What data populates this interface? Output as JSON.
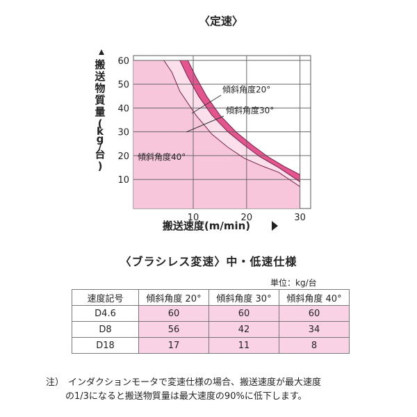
{
  "chart_data": {
    "type": "line",
    "title": "〈定速〉",
    "xlabel": "搬送速度(m/min)",
    "ylabel": "搬送物質量(kg/台)",
    "xlim": [
      0,
      30
    ],
    "ylim": [
      0,
      60
    ],
    "grid": true,
    "x_ticks": [
      10,
      20,
      30
    ],
    "y_ticks": [
      10,
      20,
      30,
      40,
      50,
      60
    ],
    "series": [
      {
        "name": "傾斜角度20°",
        "points": [
          [
            9.0,
            60
          ],
          [
            10.5,
            53
          ],
          [
            12.5,
            45
          ],
          [
            15.0,
            37
          ],
          [
            18.0,
            30
          ],
          [
            21.0,
            24.5
          ],
          [
            24.0,
            19.5
          ],
          [
            27.0,
            15.5
          ],
          [
            30.0,
            12.0
          ]
        ]
      },
      {
        "name": "傾斜角度30°",
        "points": [
          [
            7.5,
            60
          ],
          [
            9.0,
            53
          ],
          [
            11.0,
            45
          ],
          [
            13.5,
            37
          ],
          [
            16.5,
            30
          ],
          [
            19.5,
            24.5
          ],
          [
            22.5,
            19.5
          ],
          [
            26.0,
            15.0
          ],
          [
            30.0,
            9.0
          ]
        ]
      },
      {
        "name": "傾斜角度40°",
        "points": [
          [
            4.5,
            60
          ],
          [
            6.0,
            55
          ],
          [
            7.5,
            47
          ],
          [
            10.5,
            37
          ],
          [
            13.5,
            29
          ],
          [
            16.5,
            23.5
          ],
          [
            19.5,
            19
          ],
          [
            22.5,
            16
          ],
          [
            26.0,
            13.0
          ],
          [
            30.0,
            7.0
          ]
        ]
      }
    ]
  },
  "table": {
    "title": "〈ブラシレス変速〉中・低速仕様",
    "unit": "単位：kg/台",
    "headers": [
      "速度記号",
      "傾斜角度 20°",
      "傾斜角度 30°",
      "傾斜角度 40°"
    ],
    "rows": [
      [
        "D4.6",
        "60",
        "60",
        "60"
      ],
      [
        "D8",
        "56",
        "42",
        "34"
      ],
      [
        "D18",
        "17",
        "11",
        "8"
      ]
    ]
  },
  "note": {
    "prefix": "注）",
    "line1": "インダクションモータで変速仕様の場合、搬送速度が最大速度",
    "line2": "の1/3になると搬送物質量は最大速度の90%に低下します。"
  },
  "colors": {
    "pink_fill": "#f7c6db",
    "band_20": "#e2558f",
    "band_30": "#fbe0ec",
    "table_fill": "#f9d2e6"
  }
}
